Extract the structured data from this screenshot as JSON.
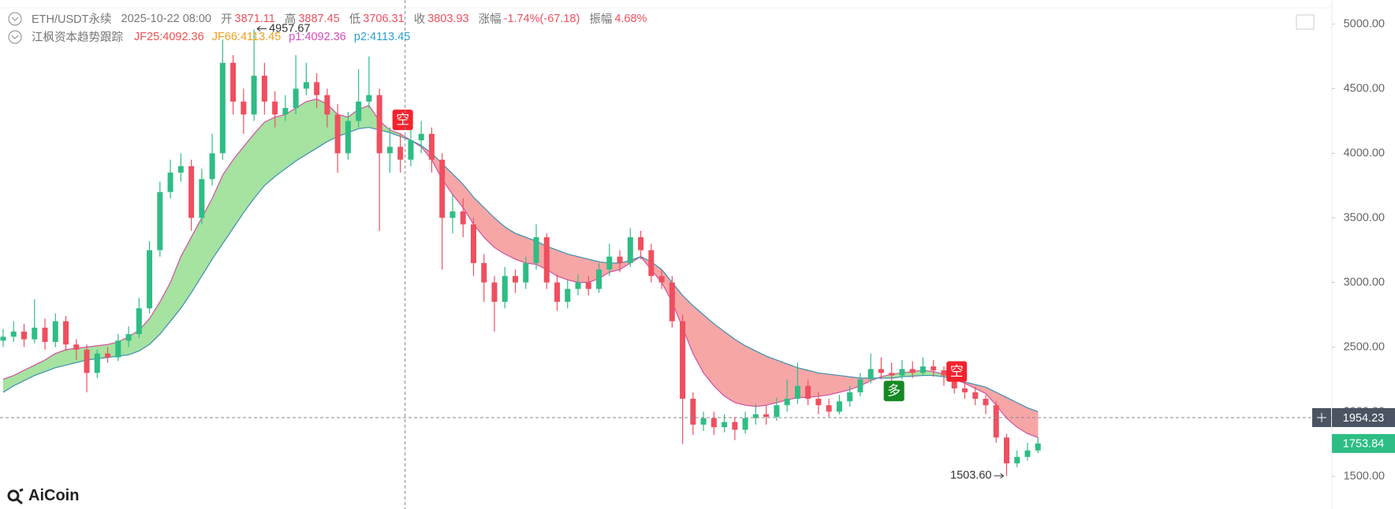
{
  "header": {
    "symbol": "ETH/USDT永续",
    "time": "2025-10-22 08:00",
    "value_color": "#ef4f5f",
    "fields": [
      {
        "name": "开",
        "value": "3871.11"
      },
      {
        "name": "高",
        "value": "3887.45"
      },
      {
        "name": "低",
        "value": "3706.31"
      },
      {
        "name": "收",
        "value": "3803.93"
      },
      {
        "name": "涨幅",
        "value": "-1.74%(-67.18)"
      },
      {
        "name": "振幅",
        "value": "4.68%"
      }
    ]
  },
  "indicator": {
    "name": "江枫资本趋势跟踪",
    "items": [
      {
        "text": "JF25:4092.36",
        "color": "#ef4f4f"
      },
      {
        "text": "JF66:4113.45",
        "color": "#f0a020"
      },
      {
        "text": "p1:4092.36",
        "color": "#d24fbe"
      },
      {
        "text": "p2:4113.45",
        "color": "#2a9fd0"
      }
    ]
  },
  "logo": "AiCoin",
  "chart_data": {
    "type": "candlestick",
    "ylim": [
      1259,
      5186
    ],
    "yticks": [
      {
        "value": 1500,
        "label": "1500.00"
      },
      {
        "value": 2000,
        "label": "2000.00"
      },
      {
        "value": 2500,
        "label": "2500.00"
      },
      {
        "value": 3000,
        "label": "3000.00"
      },
      {
        "value": 3500,
        "label": "3500.00"
      },
      {
        "value": 4000,
        "label": "4000.00"
      },
      {
        "value": 4500,
        "label": "4500.00"
      },
      {
        "value": 5000,
        "label": "5000.00"
      }
    ],
    "up_color": "#2ebd85",
    "down_color": "#ef4f5f",
    "open": [
      2550,
      2580,
      2620,
      2560,
      2650,
      2540,
      2700,
      2520,
      2480,
      2300,
      2450,
      2420,
      2550,
      2600,
      2800,
      3250,
      3700,
      3850,
      3900,
      3500,
      3800,
      4000,
      4700,
      4400,
      4300,
      4600,
      4400,
      4300,
      4350,
      4500,
      4550,
      4450,
      4300,
      4000,
      4250,
      4400,
      4450,
      4000,
      4050,
      3950,
      4100,
      4150,
      3950,
      3500,
      3550,
      3450,
      3150,
      3000,
      2850,
      3050,
      3000,
      3150,
      3350,
      3000,
      2850,
      2950,
      3000,
      2950,
      3100,
      3200,
      3150,
      3350,
      3250,
      3050,
      3000,
      2700,
      2100,
      1900,
      1950,
      1880,
      1920,
      1860,
      1950,
      1980,
      1960,
      2050,
      2100,
      2200,
      2100,
      2050,
      2000,
      2080,
      2150,
      2250,
      2330,
      2300,
      2280,
      2330,
      2300,
      2350,
      2320,
      2280,
      2180,
      2150,
      2100,
      2050,
      1800,
      1600,
      1650,
      1700
    ],
    "high": [
      2640,
      2700,
      2680,
      2870,
      2720,
      2760,
      2740,
      2560,
      2520,
      2480,
      2500,
      2600,
      2660,
      2880,
      3320,
      3780,
      3950,
      4000,
      3950,
      3880,
      4150,
      4880,
      4760,
      4500,
      4957.67,
      4700,
      4480,
      4450,
      4760,
      4700,
      4620,
      4500,
      4380,
      4320,
      4650,
      4750,
      4500,
      4200,
      4150,
      4220,
      4250,
      4200,
      4000,
      3680,
      3650,
      3500,
      3220,
      3050,
      3120,
      3100,
      3200,
      3450,
      3380,
      3060,
      3020,
      3060,
      3050,
      3150,
      3300,
      3250,
      3420,
      3400,
      3300,
      3100,
      3050,
      2750,
      2150,
      2000,
      2000,
      1980,
      1960,
      2000,
      2060,
      2050,
      2110,
      2250,
      2380,
      2250,
      2150,
      2100,
      2130,
      2200,
      2300,
      2450,
      2420,
      2380,
      2400,
      2390,
      2420,
      2400,
      2350,
      2310,
      2230,
      2190,
      2130,
      2080,
      1830,
      1700,
      1760,
      1800
    ],
    "low": [
      2500,
      2540,
      2500,
      2530,
      2480,
      2500,
      2470,
      2400,
      2150,
      2260,
      2380,
      2390,
      2500,
      2570,
      2760,
      3200,
      3650,
      3780,
      3400,
      3450,
      3750,
      3950,
      4300,
      4150,
      4250,
      4300,
      4200,
      4250,
      4300,
      4450,
      4350,
      4200,
      3850,
      3950,
      4200,
      4350,
      3400,
      3850,
      3850,
      3900,
      4000,
      3850,
      3100,
      3380,
      3350,
      3050,
      2850,
      2620,
      2800,
      2920,
      2950,
      3100,
      2950,
      2780,
      2800,
      2900,
      2900,
      2920,
      3050,
      3080,
      3120,
      3180,
      3000,
      2950,
      2650,
      1750,
      1820,
      1850,
      1820,
      1840,
      1780,
      1830,
      1900,
      1900,
      1930,
      2000,
      2060,
      2050,
      1980,
      1960,
      1980,
      2040,
      2120,
      2220,
      2250,
      2220,
      2250,
      2260,
      2280,
      2270,
      2200,
      2140,
      2100,
      2050,
      1980,
      1760,
      1503.6,
      1570,
      1620,
      1680
    ],
    "close": [
      2580,
      2620,
      2560,
      2650,
      2540,
      2700,
      2520,
      2480,
      2300,
      2450,
      2420,
      2550,
      2600,
      2800,
      3250,
      3700,
      3850,
      3900,
      3500,
      3800,
      4000,
      4700,
      4400,
      4300,
      4600,
      4400,
      4300,
      4350,
      4500,
      4550,
      4450,
      4300,
      4000,
      4250,
      4400,
      4450,
      4000,
      4050,
      3950,
      4100,
      4150,
      3950,
      3500,
      3550,
      3450,
      3150,
      3000,
      2850,
      3050,
      3000,
      3150,
      3350,
      3000,
      2850,
      2950,
      3000,
      2950,
      3100,
      3200,
      3150,
      3350,
      3250,
      3050,
      3000,
      2700,
      2100,
      1900,
      1950,
      1880,
      1920,
      1860,
      1950,
      1980,
      1960,
      2050,
      2100,
      2200,
      2100,
      2050,
      2000,
      2080,
      2150,
      2250,
      2330,
      2300,
      2280,
      2330,
      2300,
      2350,
      2320,
      2280,
      2180,
      2150,
      2100,
      2050,
      1800,
      1600,
      1650,
      1700,
      1753.84
    ],
    "bands": {
      "bull_fill": "#a6e2a0",
      "bear_fill": "#f7a6a6",
      "fast": {
        "color": "#d24fa0",
        "values": [
          2250,
          2280,
          2320,
          2360,
          2400,
          2450,
          2480,
          2490,
          2500,
          2510,
          2520,
          2540,
          2580,
          2630,
          2720,
          2850,
          3000,
          3200,
          3350,
          3500,
          3650,
          3830,
          3950,
          4050,
          4150,
          4240,
          4280,
          4300,
          4350,
          4400,
          4420,
          4380,
          4300,
          4280,
          4340,
          4370,
          4250,
          4180,
          4150,
          4100,
          4050,
          3950,
          3800,
          3680,
          3580,
          3450,
          3350,
          3270,
          3220,
          3180,
          3150,
          3140,
          3100,
          3050,
          3020,
          3000,
          3000,
          3030,
          3080,
          3100,
          3150,
          3200,
          3100,
          3000,
          2850,
          2650,
          2450,
          2300,
          2200,
          2120,
          2070,
          2050,
          2040,
          2050,
          2070,
          2090,
          2110,
          2110,
          2120,
          2130,
          2150,
          2170,
          2200,
          2240,
          2270,
          2290,
          2300,
          2310,
          2320,
          2310,
          2290,
          2250,
          2220,
          2180,
          2140,
          2050,
          1950,
          1880,
          1830,
          1800
        ]
      },
      "slow": {
        "color": "#3a8fb0",
        "values": [
          2150,
          2200,
          2240,
          2280,
          2310,
          2340,
          2360,
          2380,
          2400,
          2410,
          2420,
          2430,
          2440,
          2470,
          2520,
          2600,
          2700,
          2800,
          2920,
          3050,
          3180,
          3300,
          3420,
          3540,
          3650,
          3750,
          3820,
          3880,
          3940,
          3990,
          4040,
          4090,
          4130,
          4160,
          4190,
          4200,
          4180,
          4160,
          4130,
          4100,
          4060,
          4000,
          3920,
          3840,
          3760,
          3660,
          3580,
          3500,
          3430,
          3380,
          3350,
          3320,
          3280,
          3250,
          3220,
          3200,
          3180,
          3160,
          3150,
          3150,
          3170,
          3200,
          3160,
          3100,
          3000,
          2900,
          2820,
          2750,
          2680,
          2620,
          2560,
          2510,
          2470,
          2430,
          2400,
          2370,
          2340,
          2320,
          2300,
          2290,
          2280,
          2270,
          2260,
          2260,
          2260,
          2260,
          2270,
          2275,
          2280,
          2280,
          2270,
          2250,
          2230,
          2210,
          2190,
          2150,
          2110,
          2070,
          2030,
          2000
        ]
      }
    },
    "signals": [
      {
        "label": "空",
        "index": 38,
        "price": 4258,
        "color": "#f5222d"
      },
      {
        "label": "多",
        "index": 85,
        "price": 2160,
        "color": "#138a24"
      },
      {
        "label": "空",
        "index": 91,
        "price": 2311,
        "color": "#f5222d"
      }
    ],
    "annotations": [
      {
        "text": "4957.67",
        "index": 24
      },
      {
        "text": "1503.60",
        "index": 96
      }
    ],
    "crosshair": {
      "index": 38,
      "price": {
        "value": 1954.23,
        "label": "1954.23"
      }
    },
    "last_price": {
      "value": 1753.84,
      "label": "1753.84"
    }
  }
}
